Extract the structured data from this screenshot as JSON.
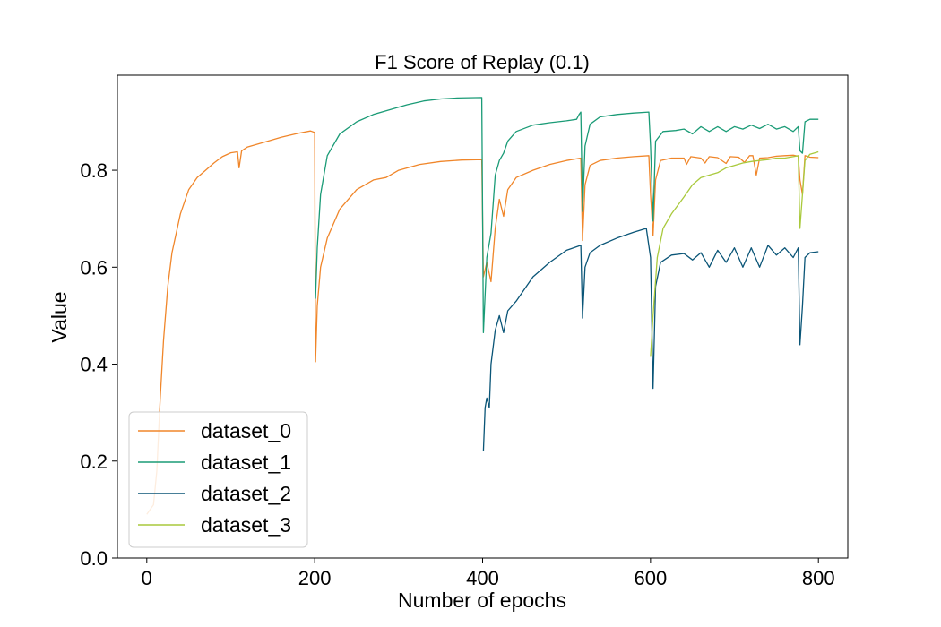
{
  "chart_data": {
    "type": "line",
    "title": "F1 Score of Replay (0.1)",
    "xlabel": "Number of epochs",
    "ylabel": "Value",
    "xlim": [
      -35,
      835
    ],
    "ylim": [
      0.0,
      0.996
    ],
    "x_ticks": [
      0,
      200,
      400,
      600,
      800
    ],
    "x_tick_labels": [
      "0",
      "200",
      "400",
      "600",
      "800"
    ],
    "y_ticks": [
      0.0,
      0.2,
      0.4,
      0.6,
      0.8
    ],
    "y_tick_labels": [
      "0.0",
      "0.2",
      "0.4",
      "0.6",
      "0.8"
    ],
    "grid": false,
    "legend_position": "lower-left",
    "series": [
      {
        "name": "dataset_0",
        "color": "#f0862a",
        "points": [
          [
            0,
            0.09
          ],
          [
            8,
            0.11
          ],
          [
            12,
            0.18
          ],
          [
            16,
            0.33
          ],
          [
            20,
            0.45
          ],
          [
            25,
            0.56
          ],
          [
            30,
            0.63
          ],
          [
            40,
            0.71
          ],
          [
            50,
            0.76
          ],
          [
            60,
            0.785
          ],
          [
            70,
            0.8
          ],
          [
            80,
            0.815
          ],
          [
            90,
            0.828
          ],
          [
            100,
            0.836
          ],
          [
            108,
            0.838
          ],
          [
            110,
            0.805
          ],
          [
            113,
            0.84
          ],
          [
            120,
            0.848
          ],
          [
            140,
            0.858
          ],
          [
            160,
            0.868
          ],
          [
            180,
            0.876
          ],
          [
            195,
            0.881
          ],
          [
            200,
            0.878
          ],
          [
            201,
            0.405
          ],
          [
            203,
            0.52
          ],
          [
            207,
            0.6
          ],
          [
            215,
            0.66
          ],
          [
            230,
            0.72
          ],
          [
            250,
            0.76
          ],
          [
            270,
            0.78
          ],
          [
            285,
            0.785
          ],
          [
            300,
            0.8
          ],
          [
            325,
            0.812
          ],
          [
            350,
            0.818
          ],
          [
            375,
            0.821
          ],
          [
            399,
            0.822
          ],
          [
            401,
            0.58
          ],
          [
            405,
            0.61
          ],
          [
            410,
            0.57
          ],
          [
            415,
            0.68
          ],
          [
            420,
            0.74
          ],
          [
            425,
            0.705
          ],
          [
            430,
            0.76
          ],
          [
            440,
            0.785
          ],
          [
            460,
            0.8
          ],
          [
            480,
            0.812
          ],
          [
            500,
            0.82
          ],
          [
            517,
            0.825
          ],
          [
            519,
            0.655
          ],
          [
            522,
            0.77
          ],
          [
            528,
            0.81
          ],
          [
            540,
            0.82
          ],
          [
            560,
            0.825
          ],
          [
            580,
            0.828
          ],
          [
            598,
            0.83
          ],
          [
            600,
            0.75
          ],
          [
            603,
            0.665
          ],
          [
            606,
            0.78
          ],
          [
            612,
            0.82
          ],
          [
            625,
            0.825
          ],
          [
            640,
            0.825
          ],
          [
            643,
            0.812
          ],
          [
            648,
            0.828
          ],
          [
            660,
            0.825
          ],
          [
            665,
            0.815
          ],
          [
            670,
            0.828
          ],
          [
            680,
            0.826
          ],
          [
            690,
            0.814
          ],
          [
            695,
            0.828
          ],
          [
            705,
            0.827
          ],
          [
            712,
            0.816
          ],
          [
            718,
            0.83
          ],
          [
            722,
            0.83
          ],
          [
            726,
            0.79
          ],
          [
            730,
            0.825
          ],
          [
            740,
            0.826
          ],
          [
            750,
            0.829
          ],
          [
            760,
            0.83
          ],
          [
            770,
            0.831
          ],
          [
            776,
            0.829
          ],
          [
            778,
            0.78
          ],
          [
            781,
            0.75
          ],
          [
            784,
            0.83
          ],
          [
            790,
            0.827
          ],
          [
            800,
            0.826
          ]
        ]
      },
      {
        "name": "dataset_1",
        "color": "#1a9b76",
        "points": [
          [
            201,
            0.535
          ],
          [
            203,
            0.64
          ],
          [
            207,
            0.75
          ],
          [
            215,
            0.83
          ],
          [
            230,
            0.875
          ],
          [
            250,
            0.9
          ],
          [
            270,
            0.915
          ],
          [
            290,
            0.925
          ],
          [
            310,
            0.935
          ],
          [
            330,
            0.943
          ],
          [
            350,
            0.947
          ],
          [
            370,
            0.949
          ],
          [
            399,
            0.95
          ],
          [
            401,
            0.465
          ],
          [
            405,
            0.62
          ],
          [
            410,
            0.67
          ],
          [
            415,
            0.79
          ],
          [
            420,
            0.82
          ],
          [
            425,
            0.835
          ],
          [
            430,
            0.86
          ],
          [
            440,
            0.88
          ],
          [
            460,
            0.893
          ],
          [
            480,
            0.898
          ],
          [
            500,
            0.902
          ],
          [
            512,
            0.905
          ],
          [
            515,
            0.915
          ],
          [
            517,
            0.92
          ],
          [
            519,
            0.715
          ],
          [
            522,
            0.85
          ],
          [
            528,
            0.895
          ],
          [
            540,
            0.91
          ],
          [
            560,
            0.915
          ],
          [
            580,
            0.918
          ],
          [
            598,
            0.92
          ],
          [
            600,
            0.85
          ],
          [
            603,
            0.695
          ],
          [
            606,
            0.86
          ],
          [
            615,
            0.88
          ],
          [
            630,
            0.882
          ],
          [
            640,
            0.885
          ],
          [
            650,
            0.875
          ],
          [
            660,
            0.89
          ],
          [
            670,
            0.88
          ],
          [
            680,
            0.89
          ],
          [
            690,
            0.88
          ],
          [
            700,
            0.89
          ],
          [
            710,
            0.885
          ],
          [
            720,
            0.893
          ],
          [
            730,
            0.886
          ],
          [
            740,
            0.895
          ],
          [
            750,
            0.885
          ],
          [
            760,
            0.89
          ],
          [
            770,
            0.88
          ],
          [
            776,
            0.89
          ],
          [
            778,
            0.84
          ],
          [
            781,
            0.835
          ],
          [
            784,
            0.9
          ],
          [
            790,
            0.905
          ],
          [
            800,
            0.905
          ]
        ]
      },
      {
        "name": "dataset_2",
        "color": "#0a5577",
        "points": [
          [
            401,
            0.22
          ],
          [
            403,
            0.31
          ],
          [
            405,
            0.33
          ],
          [
            408,
            0.31
          ],
          [
            410,
            0.4
          ],
          [
            415,
            0.47
          ],
          [
            420,
            0.5
          ],
          [
            425,
            0.465
          ],
          [
            430,
            0.51
          ],
          [
            440,
            0.53
          ],
          [
            450,
            0.555
          ],
          [
            460,
            0.58
          ],
          [
            480,
            0.61
          ],
          [
            500,
            0.635
          ],
          [
            517,
            0.645
          ],
          [
            519,
            0.495
          ],
          [
            522,
            0.6
          ],
          [
            528,
            0.63
          ],
          [
            540,
            0.645
          ],
          [
            560,
            0.66
          ],
          [
            580,
            0.672
          ],
          [
            595,
            0.68
          ],
          [
            600,
            0.62
          ],
          [
            603,
            0.35
          ],
          [
            606,
            0.56
          ],
          [
            612,
            0.61
          ],
          [
            625,
            0.625
          ],
          [
            640,
            0.628
          ],
          [
            650,
            0.615
          ],
          [
            660,
            0.63
          ],
          [
            670,
            0.6
          ],
          [
            680,
            0.635
          ],
          [
            690,
            0.61
          ],
          [
            700,
            0.64
          ],
          [
            710,
            0.6
          ],
          [
            720,
            0.64
          ],
          [
            730,
            0.6
          ],
          [
            740,
            0.645
          ],
          [
            750,
            0.625
          ],
          [
            760,
            0.64
          ],
          [
            770,
            0.62
          ],
          [
            776,
            0.64
          ],
          [
            778,
            0.44
          ],
          [
            781,
            0.52
          ],
          [
            784,
            0.62
          ],
          [
            790,
            0.63
          ],
          [
            800,
            0.632
          ]
        ]
      },
      {
        "name": "dataset_3",
        "color": "#a9c93c",
        "points": [
          [
            600,
            0.415
          ],
          [
            603,
            0.5
          ],
          [
            608,
            0.62
          ],
          [
            615,
            0.68
          ],
          [
            625,
            0.71
          ],
          [
            640,
            0.745
          ],
          [
            650,
            0.77
          ],
          [
            660,
            0.785
          ],
          [
            670,
            0.79
          ],
          [
            680,
            0.795
          ],
          [
            690,
            0.805
          ],
          [
            700,
            0.81
          ],
          [
            710,
            0.815
          ],
          [
            720,
            0.818
          ],
          [
            730,
            0.82
          ],
          [
            740,
            0.822
          ],
          [
            750,
            0.825
          ],
          [
            760,
            0.825
          ],
          [
            770,
            0.828
          ],
          [
            776,
            0.83
          ],
          [
            778,
            0.68
          ],
          [
            781,
            0.75
          ],
          [
            784,
            0.82
          ],
          [
            790,
            0.833
          ],
          [
            800,
            0.838
          ]
        ]
      }
    ]
  }
}
